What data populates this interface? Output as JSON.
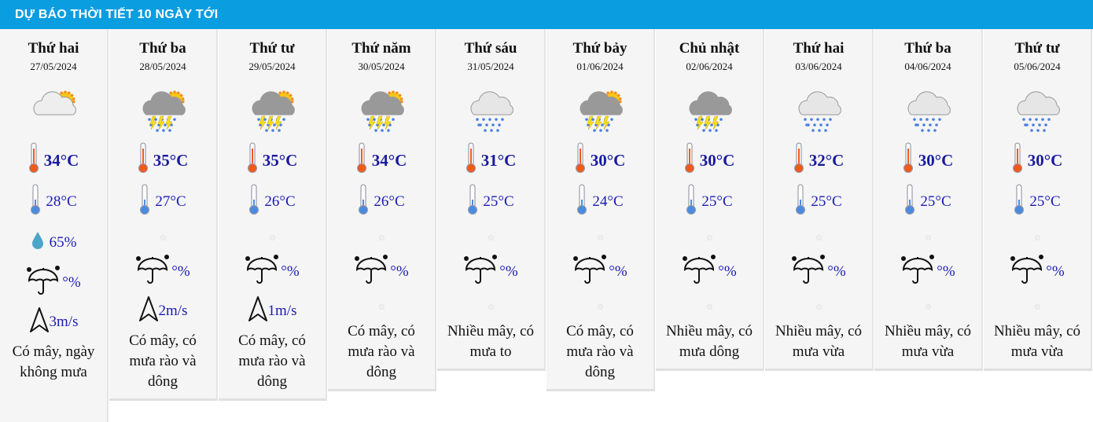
{
  "header": {
    "title": "DỰ BÁO THỜI TIẾT 10 NGÀY TỚI"
  },
  "colors": {
    "header_bg": "#0a9de0",
    "temp_text": "#1a1aa0"
  },
  "days": [
    {
      "day": "Thứ hai",
      "date": "27/05/2024",
      "icon": "partly-cloudy-sun-icon",
      "high": "34°C",
      "low": "28°C",
      "humidity": "65%",
      "rain": "°%",
      "wind": "3m/s",
      "desc": "Có mây, ngày không mưa"
    },
    {
      "day": "Thứ ba",
      "date": "28/05/2024",
      "icon": "thunderstorm-sun-icon",
      "high": "35°C",
      "low": "27°C",
      "rain": "°%",
      "wind": "2m/s",
      "desc": "Có mây, có mưa rào và dông"
    },
    {
      "day": "Thứ tư",
      "date": "29/05/2024",
      "icon": "thunderstorm-sun-icon",
      "high": "35°C",
      "low": "26°C",
      "rain": "°%",
      "wind": "1m/s",
      "desc": "Có mây, có mưa rào và dông"
    },
    {
      "day": "Thứ năm",
      "date": "30/05/2024",
      "icon": "thunderstorm-sun-icon",
      "high": "34°C",
      "low": "26°C",
      "rain": "°%",
      "desc": "Có mây, có mưa rào và dông"
    },
    {
      "day": "Thứ sáu",
      "date": "31/05/2024",
      "icon": "rain-cloud-icon",
      "high": "31°C",
      "low": "25°C",
      "rain": "°%",
      "desc": "Nhiều mây, có mưa to"
    },
    {
      "day": "Thứ bảy",
      "date": "01/06/2024",
      "icon": "thunderstorm-sun-icon",
      "high": "30°C",
      "low": "24°C",
      "rain": "°%",
      "desc": "Có mây, có mưa rào và dông"
    },
    {
      "day": "Chủ nhật",
      "date": "02/06/2024",
      "icon": "thunderstorm-icon",
      "high": "30°C",
      "low": "25°C",
      "rain": "°%",
      "desc": "Nhiều mây, có mưa dông"
    },
    {
      "day": "Thứ hai",
      "date": "03/06/2024",
      "icon": "rain-cloud-icon",
      "high": "32°C",
      "low": "25°C",
      "rain": "°%",
      "desc": "Nhiều mây, có mưa vừa"
    },
    {
      "day": "Thứ ba",
      "date": "04/06/2024",
      "icon": "rain-cloud-icon",
      "high": "30°C",
      "low": "25°C",
      "rain": "°%",
      "desc": "Nhiều mây, có mưa vừa"
    },
    {
      "day": "Thứ tư",
      "date": "05/06/2024",
      "icon": "rain-cloud-icon",
      "high": "30°C",
      "low": "25°C",
      "rain": "°%",
      "desc": "Nhiều mây, có mưa vừa"
    }
  ]
}
